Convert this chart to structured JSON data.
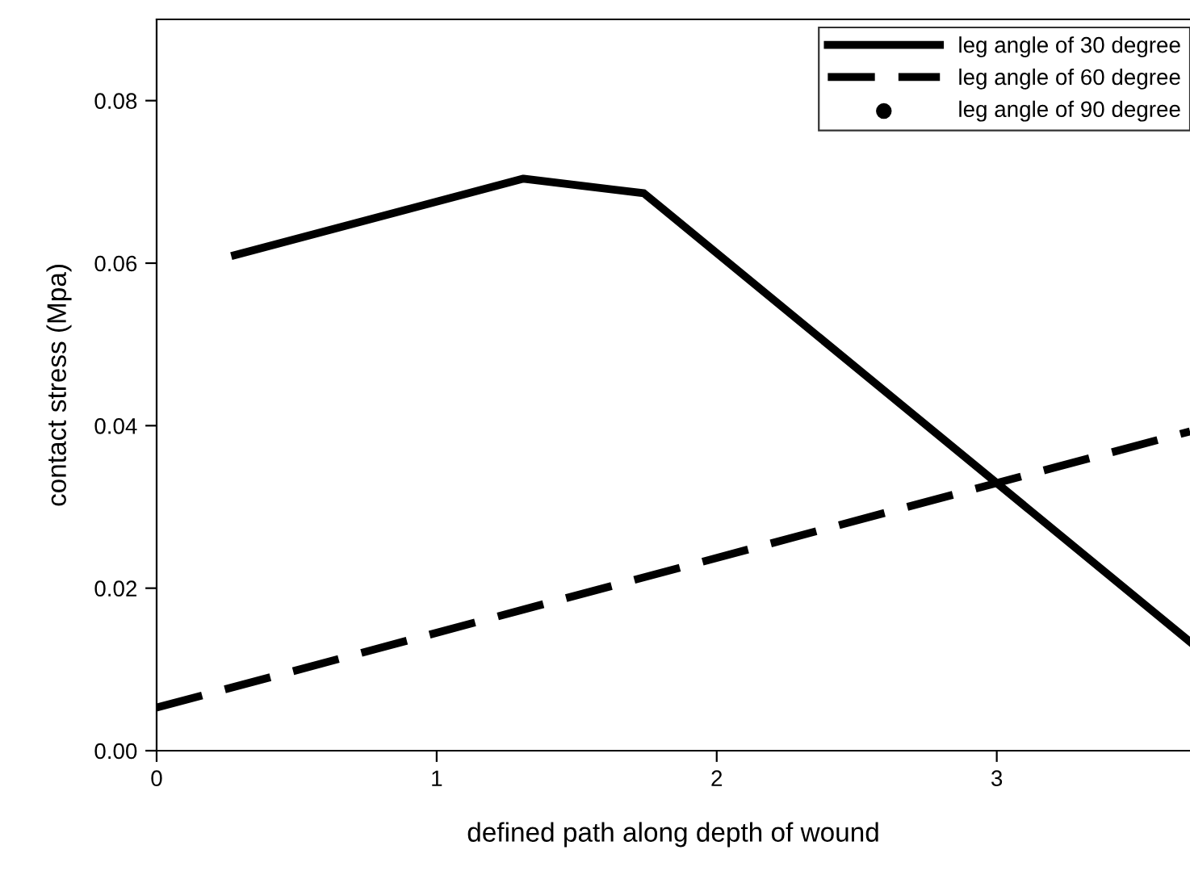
{
  "chart_data": {
    "type": "line",
    "xlabel": "defined path along depth of wound",
    "ylabel": "contact stress (Mpa)",
    "xlim": [
      0,
      3.69
    ],
    "ylim": [
      0,
      0.09
    ],
    "xticks": [
      0,
      1,
      2,
      3
    ],
    "yticks": [
      {
        "value": 0,
        "label": "0.00"
      },
      {
        "value": 0.02,
        "label": "0.02"
      },
      {
        "value": 0.04,
        "label": "0.04"
      },
      {
        "value": 0.06,
        "label": "0.06"
      },
      {
        "value": 0.08,
        "label": "0.08"
      }
    ],
    "grid": false,
    "legend": "top right",
    "series": [
      {
        "name": "leg angle of 30 degree",
        "color": "#000000",
        "line_style": "solid",
        "marker": "none",
        "x": [
          0.28,
          1.31,
          1.74,
          3.69
        ],
        "values": [
          0.061,
          0.0704,
          0.0686,
          0.0134
        ]
      },
      {
        "name": "leg angle of 60 degree",
        "color": "#000000",
        "line_style": "dashed",
        "marker": "none",
        "x": [
          0,
          3.69
        ],
        "values": [
          0.0053,
          0.0393
        ]
      },
      {
        "name": "leg angle of 90 degree",
        "color": "#000000",
        "line_style": "none",
        "marker": "circle"
      }
    ]
  }
}
